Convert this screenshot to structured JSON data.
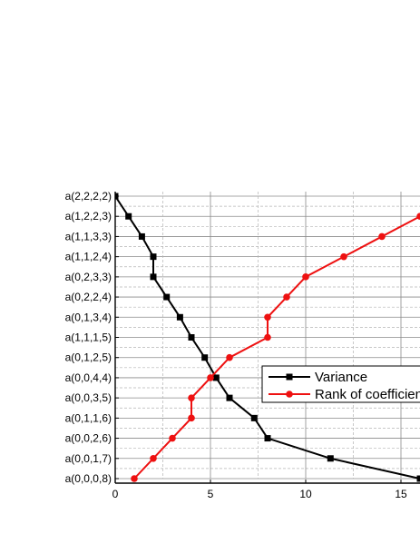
{
  "chart_data": {
    "type": "line",
    "title": "",
    "xlabel": "",
    "ylabel": "",
    "xlim": [
      0,
      16
    ],
    "x_ticks": [
      "0",
      "5",
      "10",
      "15"
    ],
    "categories": [
      "a(0,0,0,8)",
      "a(0,0,1,7)",
      "a(0,0,2,6)",
      "a(0,1,1,6)",
      "a(0,0,3,5)",
      "a(0,0,4,4)",
      "a(0,1,2,5)",
      "a(1,1,1,5)",
      "a(0,1,3,4)",
      "a(0,2,2,4)",
      "a(0,2,3,3)",
      "a(1,1,2,4)",
      "a(1,1,3,3)",
      "a(1,2,2,3)",
      "a(2,2,2,2)"
    ],
    "grid": true,
    "legend_position": "center-right",
    "series": [
      {
        "name": "Variance",
        "color": "#000000",
        "marker": "square",
        "points": [
          {
            "x": 0.0,
            "y": 15
          },
          {
            "x": 0.7,
            "y": 14
          },
          {
            "x": 1.4,
            "y": 13
          },
          {
            "x": 2.0,
            "y": 12
          },
          {
            "x": 2.0,
            "y": 11
          },
          {
            "x": 2.7,
            "y": 10
          },
          {
            "x": 3.4,
            "y": 9
          },
          {
            "x": 4.0,
            "y": 8
          },
          {
            "x": 4.7,
            "y": 7
          },
          {
            "x": 5.3,
            "y": 6
          },
          {
            "x": 6.0,
            "y": 5
          },
          {
            "x": 7.3,
            "y": 4
          },
          {
            "x": 8.0,
            "y": 3
          },
          {
            "x": 11.3,
            "y": 2
          },
          {
            "x": 16.0,
            "y": 1
          }
        ]
      },
      {
        "name": "Rank of coefficients",
        "color": "#ee1111",
        "marker": "circle",
        "points": [
          {
            "x": 1,
            "y": 1
          },
          {
            "x": 2,
            "y": 2
          },
          {
            "x": 3,
            "y": 3
          },
          {
            "x": 4,
            "y": 4
          },
          {
            "x": 4,
            "y": 5
          },
          {
            "x": 5,
            "y": 6
          },
          {
            "x": 6,
            "y": 7
          },
          {
            "x": 8,
            "y": 8
          },
          {
            "x": 8,
            "y": 9
          },
          {
            "x": 9,
            "y": 10
          },
          {
            "x": 10,
            "y": 11
          },
          {
            "x": 12,
            "y": 12
          },
          {
            "x": 14,
            "y": 13
          },
          {
            "x": 16,
            "y": 14
          }
        ]
      }
    ]
  }
}
